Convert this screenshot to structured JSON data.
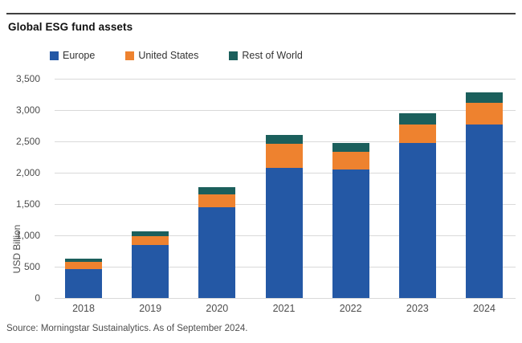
{
  "title": "Global ESG fund assets",
  "source": "Source: Morningstar Sustainalytics. As of September 2024.",
  "colors": {
    "europe": "#2458A5",
    "united_states": "#EE822F",
    "rest_of_world": "#1B5F5C",
    "gridline": "#D9D9D9",
    "top_rule": "#404040"
  },
  "chart_data": {
    "type": "bar",
    "stacked": true,
    "title": "Global ESG fund assets",
    "xlabel": "",
    "ylabel": "USD Billion",
    "categories": [
      "2018",
      "2019",
      "2020",
      "2021",
      "2022",
      "2023",
      "2024"
    ],
    "series": [
      {
        "name": "Europe",
        "color": "#2458A5",
        "values": [
          460,
          845,
          1450,
          2075,
          2055,
          2475,
          2770
        ]
      },
      {
        "name": "United States",
        "color": "#EE822F",
        "values": [
          115,
          140,
          200,
          385,
          275,
          300,
          340
        ]
      },
      {
        "name": "Rest of World",
        "color": "#1B5F5C",
        "values": [
          50,
          75,
          115,
          140,
          140,
          170,
          170
        ]
      }
    ],
    "totals": [
      625,
      1060,
      1765,
      2600,
      2470,
      2945,
      3280
    ],
    "ylim": [
      0,
      3500
    ],
    "ytick_step": 500,
    "ytick_labels": [
      "0",
      "500",
      "1,000",
      "1,500",
      "2,000",
      "2,500",
      "3,000",
      "3,500"
    ],
    "grid": true,
    "legend_position": "top"
  }
}
